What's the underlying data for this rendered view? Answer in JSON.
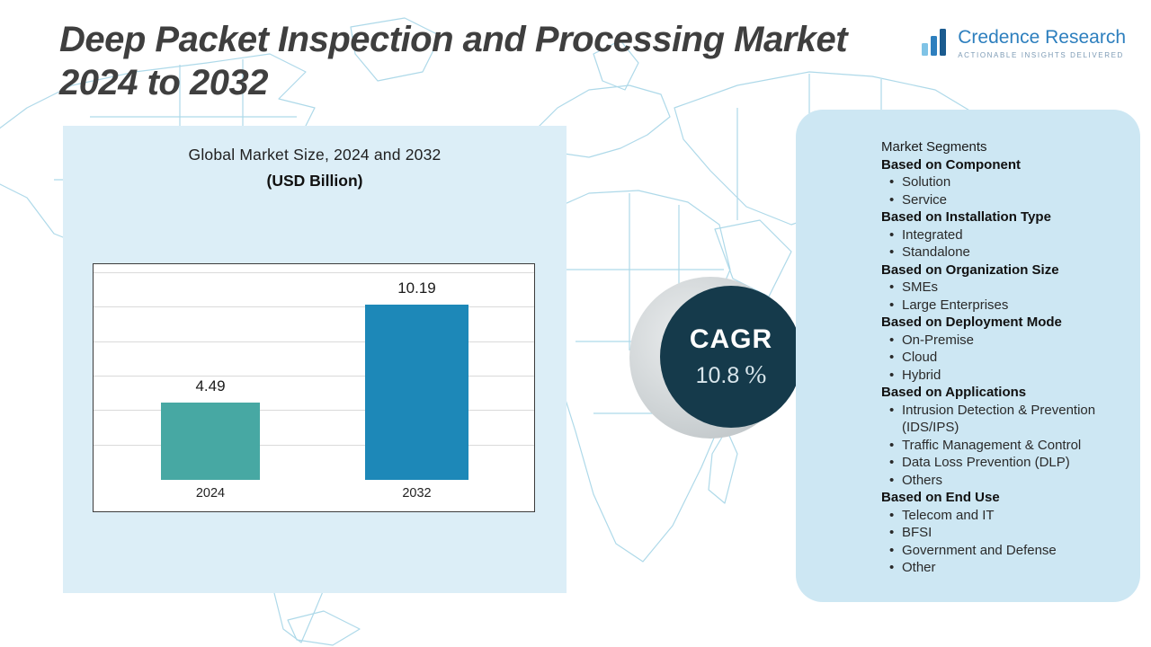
{
  "title": {
    "line1": "Deep Packet Inspection and Processing Market",
    "line2": "2024 to 2032"
  },
  "logo": {
    "name": "Credence Research",
    "tagline": "Actionable Insights Delivered"
  },
  "chart_data": {
    "type": "bar",
    "title": "Global Market Size, 2024 and 2032",
    "subtitle": "(USD Billion)",
    "categories": [
      "2024",
      "2032"
    ],
    "values": [
      4.49,
      10.19
    ],
    "value_labels": [
      "4.49",
      "10.19"
    ],
    "bar_colors": [
      "#47a8a3",
      "#1d88b8"
    ],
    "ylabel": "",
    "xlabel": "",
    "ylim": [
      0,
      12
    ],
    "gridline_values": [
      2,
      4,
      6,
      8,
      10,
      12
    ],
    "grid": true,
    "legend": "none"
  },
  "cagr": {
    "label": "CAGR",
    "value": "10.8",
    "unit": "%"
  },
  "segments": {
    "title": "Market Segments",
    "sections": [
      {
        "heading": "Based on Component",
        "items": [
          "Solution",
          "Service"
        ]
      },
      {
        "heading": "Based on Installation Type",
        "items": [
          "Integrated",
          "Standalone"
        ]
      },
      {
        "heading": "Based on Organization Size",
        "items": [
          "SMEs",
          "Large Enterprises"
        ]
      },
      {
        "heading": "Based on Deployment Mode",
        "items": [
          "On-Premise",
          "Cloud",
          "Hybrid"
        ]
      },
      {
        "heading": "Based on Applications",
        "items": [
          "Intrusion Detection & Prevention (IDS/IPS)",
          "Traffic Management & Control",
          "Data Loss Prevention (DLP)",
          "Others"
        ]
      },
      {
        "heading": "Based on End Use",
        "items": [
          "Telecom and IT",
          "BFSI",
          "Government and Defense",
          "Other"
        ]
      }
    ]
  },
  "colors": {
    "accent_teal": "#47a8a3",
    "accent_blue": "#1d88b8",
    "dark_circle": "#153a4b",
    "left_panel": "#dceef7",
    "right_panel": "#cde7f3",
    "map_line": "#aed9e9",
    "logo_blue": "#2d7fbe",
    "title_gray": "#3f3f3f"
  }
}
